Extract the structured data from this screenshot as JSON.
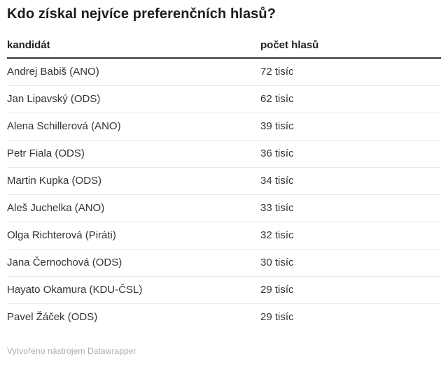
{
  "title": "Kdo získal nejvíce preferenčních hlasů?",
  "footer": {
    "attribution": "Vytvořeno nástrojem Datawrapper"
  },
  "colors": {
    "background": "#ffffff",
    "title_text": "#1d1d1d",
    "header_text": "#212121",
    "body_text": "#333333",
    "header_rule": "#333333",
    "row_divider": "#e8e8e8",
    "footer_text": "#abaaaa"
  },
  "chart_data": {
    "type": "table",
    "title": "Kdo získal nejvíce preferenčních hlasů?",
    "columns": [
      "kandidát",
      "počet hlasů"
    ],
    "rows": [
      [
        "Andrej Babiš (ANO)",
        "72 tisíc"
      ],
      [
        "Jan Lipavský (ODS)",
        "62 tisíc"
      ],
      [
        "Alena Schillerová (ANO)",
        "39 tisíc"
      ],
      [
        "Petr Fiala (ODS)",
        "36 tisíc"
      ],
      [
        "Martin Kupka (ODS)",
        "34 tisíc"
      ],
      [
        "Aleš Juchelka (ANO)",
        "33 tisíc"
      ],
      [
        "Olga Richterová (Piráti)",
        "32 tisíc"
      ],
      [
        "Jana Černochová (ODS)",
        "30 tisíc"
      ],
      [
        "Hayato Okamura (KDU-ČSL)",
        "29 tisíc"
      ],
      [
        "Pavel Žáček (ODS)",
        "29 tisíc"
      ]
    ],
    "values_tisic": [
      72,
      62,
      39,
      36,
      34,
      33,
      32,
      30,
      29,
      29
    ],
    "legend": "none",
    "grid": "row-dividers-only"
  }
}
